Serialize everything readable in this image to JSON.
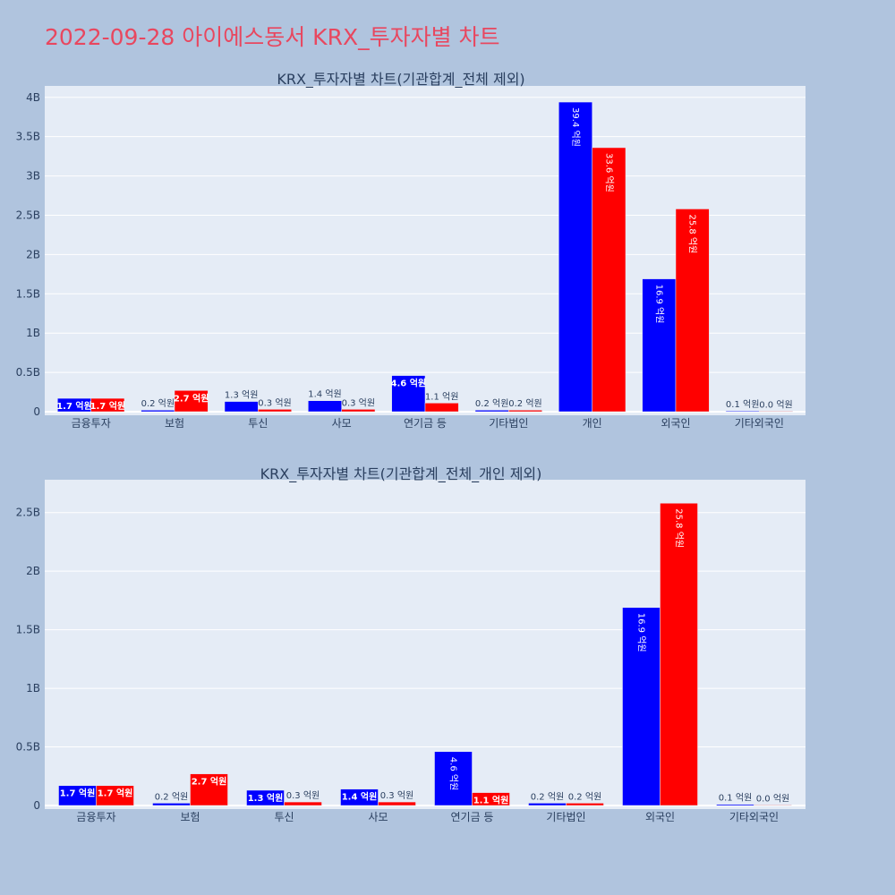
{
  "page": {
    "title": "2022-09-28 아이에스동서 KRX_투자자별 차트"
  },
  "colors": {
    "page_bg": "#b0c4de",
    "plot_bg": "#e5ecf6",
    "title": "#e8475f",
    "sell": "#0000ff",
    "buy": "#ff0000"
  },
  "chart_data": [
    {
      "type": "bar",
      "title": "KRX_투자자별 차트(기관합계_전체 제외)",
      "categories": [
        "금융투자",
        "보험",
        "투신",
        "사모",
        "연기금 등",
        "기타법인",
        "개인",
        "외국인",
        "기타외국인"
      ],
      "ylim": [
        0,
        4100000000
      ],
      "yticks": [
        0,
        500000000,
        1000000000,
        1500000000,
        2000000000,
        2500000000,
        3000000000,
        3500000000,
        4000000000
      ],
      "ytick_labels": [
        "0",
        "0.5B",
        "1B",
        "1.5B",
        "2B",
        "2.5B",
        "3B",
        "3.5B",
        "4B"
      ],
      "grid": true,
      "series": [
        {
          "color": "#0000ff",
          "values": [
            170000000,
            20000000,
            130000000,
            140000000,
            460000000,
            20000000,
            3940000000,
            1690000000,
            10000000
          ],
          "labels": [
            "1.7 억원",
            "0.2 억원",
            "1.3 억원",
            "1.4 억원",
            "4.6 억원",
            "0.2 억원",
            "39.4 억원",
            "16.9 억원",
            "0.1 억원"
          ]
        },
        {
          "color": "#ff0000",
          "values": [
            170000000,
            270000000,
            30000000,
            30000000,
            110000000,
            20000000,
            3360000000,
            2580000000,
            0
          ],
          "labels": [
            "1.7 억원",
            "2.7 억원",
            "0.3 억원",
            "0.3 억원",
            "1.1 억원",
            "0.2 억원",
            "33.6 억원",
            "25.8 억원",
            "0.0 억원"
          ]
        }
      ]
    },
    {
      "type": "bar",
      "title": "KRX_투자자별 차트(기관합계_전체_개인 제외)",
      "categories": [
        "금융투자",
        "보험",
        "투신",
        "사모",
        "연기금 등",
        "기타법인",
        "외국인",
        "기타외국인"
      ],
      "ylim": [
        0,
        2750000000
      ],
      "yticks": [
        0,
        500000000,
        1000000000,
        1500000000,
        2000000000,
        2500000000
      ],
      "ytick_labels": [
        "0",
        "0.5B",
        "1B",
        "1.5B",
        "2B",
        "2.5B"
      ],
      "grid": true,
      "series": [
        {
          "color": "#0000ff",
          "values": [
            170000000,
            20000000,
            130000000,
            140000000,
            460000000,
            20000000,
            1690000000,
            10000000
          ],
          "labels": [
            "1.7 억원",
            "0.2 억원",
            "1.3 억원",
            "1.4 억원",
            "4.6 억원",
            "0.2 억원",
            "16.9 억원",
            "0.1 억원"
          ]
        },
        {
          "color": "#ff0000",
          "values": [
            170000000,
            270000000,
            30000000,
            30000000,
            110000000,
            20000000,
            2580000000,
            0
          ],
          "labels": [
            "1.7 억원",
            "2.7 억원",
            "0.3 억원",
            "0.3 억원",
            "1.1 억원",
            "0.2 억원",
            "25.8 억원",
            "0.0 억원"
          ]
        }
      ]
    }
  ]
}
